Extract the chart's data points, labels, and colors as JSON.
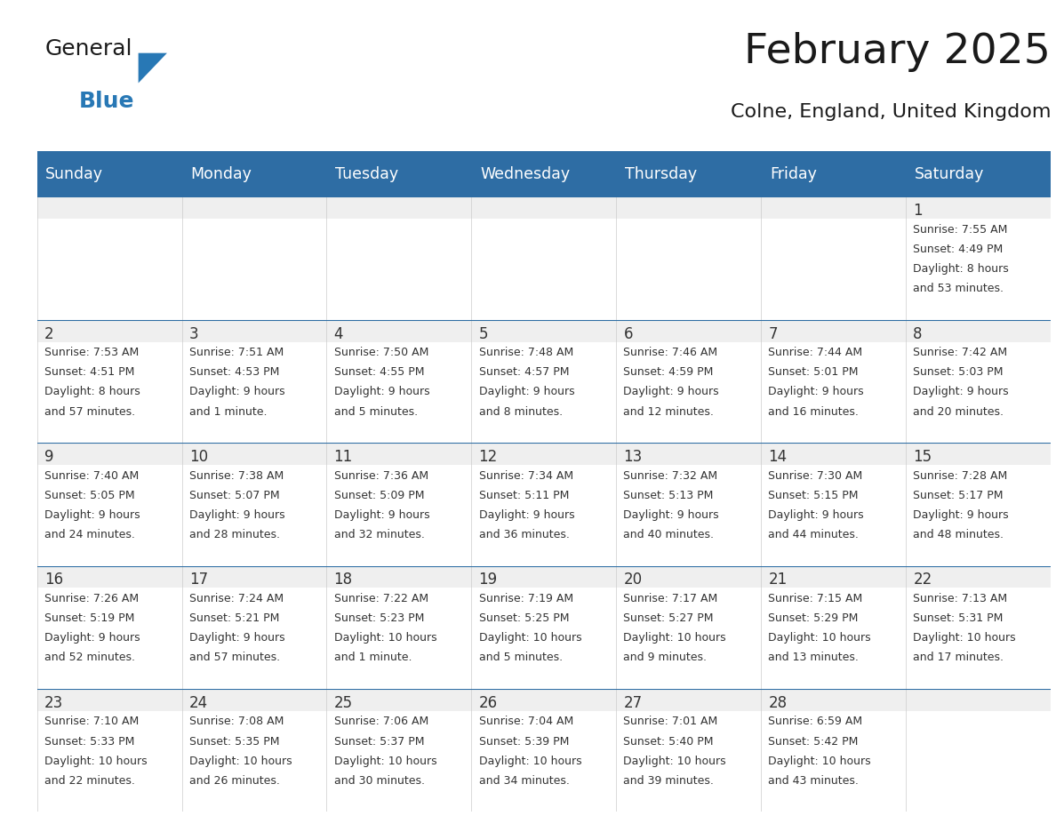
{
  "title": "February 2025",
  "subtitle": "Colne, England, United Kingdom",
  "header_bg": "#2E6DA4",
  "header_text_color": "#FFFFFF",
  "cell_bg_light": "#EFEFEF",
  "cell_bg_white": "#FFFFFF",
  "border_color": "#2E6DA4",
  "day_headers": [
    "Sunday",
    "Monday",
    "Tuesday",
    "Wednesday",
    "Thursday",
    "Friday",
    "Saturday"
  ],
  "title_color": "#1a1a1a",
  "subtitle_color": "#1a1a1a",
  "day_num_color": "#333333",
  "cell_text_color": "#333333",
  "logo_general_color": "#1a1a1a",
  "logo_blue_color": "#2878B5",
  "calendar_data": [
    [
      null,
      null,
      null,
      null,
      null,
      null,
      {
        "day": 1,
        "sunrise": "7:55 AM",
        "sunset": "4:49 PM",
        "daylight_h": "8 hours",
        "daylight_m": "and 53 minutes."
      }
    ],
    [
      {
        "day": 2,
        "sunrise": "7:53 AM",
        "sunset": "4:51 PM",
        "daylight_h": "8 hours",
        "daylight_m": "and 57 minutes."
      },
      {
        "day": 3,
        "sunrise": "7:51 AM",
        "sunset": "4:53 PM",
        "daylight_h": "9 hours",
        "daylight_m": "and 1 minute."
      },
      {
        "day": 4,
        "sunrise": "7:50 AM",
        "sunset": "4:55 PM",
        "daylight_h": "9 hours",
        "daylight_m": "and 5 minutes."
      },
      {
        "day": 5,
        "sunrise": "7:48 AM",
        "sunset": "4:57 PM",
        "daylight_h": "9 hours",
        "daylight_m": "and 8 minutes."
      },
      {
        "day": 6,
        "sunrise": "7:46 AM",
        "sunset": "4:59 PM",
        "daylight_h": "9 hours",
        "daylight_m": "and 12 minutes."
      },
      {
        "day": 7,
        "sunrise": "7:44 AM",
        "sunset": "5:01 PM",
        "daylight_h": "9 hours",
        "daylight_m": "and 16 minutes."
      },
      {
        "day": 8,
        "sunrise": "7:42 AM",
        "sunset": "5:03 PM",
        "daylight_h": "9 hours",
        "daylight_m": "and 20 minutes."
      }
    ],
    [
      {
        "day": 9,
        "sunrise": "7:40 AM",
        "sunset": "5:05 PM",
        "daylight_h": "9 hours",
        "daylight_m": "and 24 minutes."
      },
      {
        "day": 10,
        "sunrise": "7:38 AM",
        "sunset": "5:07 PM",
        "daylight_h": "9 hours",
        "daylight_m": "and 28 minutes."
      },
      {
        "day": 11,
        "sunrise": "7:36 AM",
        "sunset": "5:09 PM",
        "daylight_h": "9 hours",
        "daylight_m": "and 32 minutes."
      },
      {
        "day": 12,
        "sunrise": "7:34 AM",
        "sunset": "5:11 PM",
        "daylight_h": "9 hours",
        "daylight_m": "and 36 minutes."
      },
      {
        "day": 13,
        "sunrise": "7:32 AM",
        "sunset": "5:13 PM",
        "daylight_h": "9 hours",
        "daylight_m": "and 40 minutes."
      },
      {
        "day": 14,
        "sunrise": "7:30 AM",
        "sunset": "5:15 PM",
        "daylight_h": "9 hours",
        "daylight_m": "and 44 minutes."
      },
      {
        "day": 15,
        "sunrise": "7:28 AM",
        "sunset": "5:17 PM",
        "daylight_h": "9 hours",
        "daylight_m": "and 48 minutes."
      }
    ],
    [
      {
        "day": 16,
        "sunrise": "7:26 AM",
        "sunset": "5:19 PM",
        "daylight_h": "9 hours",
        "daylight_m": "and 52 minutes."
      },
      {
        "day": 17,
        "sunrise": "7:24 AM",
        "sunset": "5:21 PM",
        "daylight_h": "9 hours",
        "daylight_m": "and 57 minutes."
      },
      {
        "day": 18,
        "sunrise": "7:22 AM",
        "sunset": "5:23 PM",
        "daylight_h": "10 hours",
        "daylight_m": "and 1 minute."
      },
      {
        "day": 19,
        "sunrise": "7:19 AM",
        "sunset": "5:25 PM",
        "daylight_h": "10 hours",
        "daylight_m": "and 5 minutes."
      },
      {
        "day": 20,
        "sunrise": "7:17 AM",
        "sunset": "5:27 PM",
        "daylight_h": "10 hours",
        "daylight_m": "and 9 minutes."
      },
      {
        "day": 21,
        "sunrise": "7:15 AM",
        "sunset": "5:29 PM",
        "daylight_h": "10 hours",
        "daylight_m": "and 13 minutes."
      },
      {
        "day": 22,
        "sunrise": "7:13 AM",
        "sunset": "5:31 PM",
        "daylight_h": "10 hours",
        "daylight_m": "and 17 minutes."
      }
    ],
    [
      {
        "day": 23,
        "sunrise": "7:10 AM",
        "sunset": "5:33 PM",
        "daylight_h": "10 hours",
        "daylight_m": "and 22 minutes."
      },
      {
        "day": 24,
        "sunrise": "7:08 AM",
        "sunset": "5:35 PM",
        "daylight_h": "10 hours",
        "daylight_m": "and 26 minutes."
      },
      {
        "day": 25,
        "sunrise": "7:06 AM",
        "sunset": "5:37 PM",
        "daylight_h": "10 hours",
        "daylight_m": "and 30 minutes."
      },
      {
        "day": 26,
        "sunrise": "7:04 AM",
        "sunset": "5:39 PM",
        "daylight_h": "10 hours",
        "daylight_m": "and 34 minutes."
      },
      {
        "day": 27,
        "sunrise": "7:01 AM",
        "sunset": "5:40 PM",
        "daylight_h": "10 hours",
        "daylight_m": "and 39 minutes."
      },
      {
        "day": 28,
        "sunrise": "6:59 AM",
        "sunset": "5:42 PM",
        "daylight_h": "10 hours",
        "daylight_m": "and 43 minutes."
      },
      null
    ]
  ]
}
